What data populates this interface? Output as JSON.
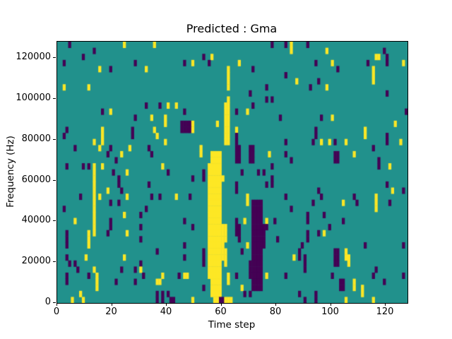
{
  "figure": {
    "background": "#ffffff"
  },
  "chart_data": {
    "type": "heatmap",
    "title": "Predicted : Gma",
    "xlabel": "Time step",
    "ylabel": "Frequency (Hz)",
    "x_range": [
      0,
      128
    ],
    "y_range": [
      0,
      128000
    ],
    "x_ticks": [
      0,
      20,
      40,
      60,
      80,
      100,
      120
    ],
    "y_ticks": [
      0,
      20000,
      40000,
      60000,
      80000,
      100000,
      120000
    ],
    "grid": "off",
    "legend": "none",
    "colormap": "viridis",
    "cell_classes": {
      ".": {
        "label": "mid/background",
        "color": "#21918c"
      },
      "p": {
        "label": "low",
        "color": "#440154"
      },
      "y": {
        "label": "high",
        "color": "#fde725"
      }
    },
    "n_cols": 128,
    "n_rows": 43,
    "rows_top_to_bottom": [
      {
        "p": [
          4,
          78,
          83,
          91
        ],
        "y": [
          24,
          35,
          85
        ]
      },
      {
        "p": [
          13,
          119
        ],
        "y": [
          85,
          98
        ]
      },
      {
        "p": [
          9,
          53,
          120
        ],
        "y": [
          56,
          116,
          117
        ]
      },
      {
        "p": [
          2,
          28,
          46,
          55,
          94,
          113,
          120
        ],
        "y": [
          49,
          66,
          100,
          126
        ]
      },
      {
        "p": [
          19,
          71,
          102
        ],
        "y": [
          15,
          32,
          62,
          115
        ]
      },
      {
        "p": [
          83
        ],
        "y": [
          62,
          115
        ]
      },
      {
        "p": [
          95
        ],
        "y": [
          62,
          87,
          115
        ]
      },
      {
        "p": [
          76,
          92
        ],
        "y": [
          2,
          11,
          62,
          98
        ]
      },
      {
        "p": [
          70,
          120
        ],
        "y": []
      },
      {
        "p": [
          76,
          78
        ],
        "y": [
          62
        ]
      },
      {
        "p": [
          32,
          37,
          71
        ],
        "y": [
          40,
          43,
          61,
          62
        ]
      },
      {
        "p": [
          16,
          46,
          65,
          127
        ],
        "y": [
          19,
          61,
          62,
          69
        ]
      },
      {
        "p": [
          28,
          81,
          96
        ],
        "y": [
          34,
          39,
          61,
          62,
          100
        ]
      },
      {
        "p": [
          45,
          46,
          47,
          48
        ],
        "y": [
          39,
          49,
          58,
          61,
          62,
          123
        ]
      },
      {
        "p": [
          3,
          27,
          45,
          46,
          47,
          48,
          94
        ],
        "y": [
          16,
          35,
          49,
          61,
          62,
          65,
          112
        ]
      },
      {
        "p": [
          2,
          27,
          65,
          94,
          120
        ],
        "y": [
          16,
          36,
          61,
          62,
          112
        ]
      },
      {
        "p": [
          65,
          83,
          93,
          101,
          120
        ],
        "y": [
          13,
          16,
          39,
          61,
          62,
          96,
          99,
          105,
          125
        ]
      },
      {
        "p": [
          6,
          19,
          33,
          65,
          66,
          70,
          71,
          115
        ],
        "y": [
          15,
          26,
          52
        ]
      },
      {
        "p": [
          18,
          34,
          65,
          66,
          70,
          71,
          83,
          101,
          102
        ],
        "y": [
          23,
          52,
          56,
          57,
          58,
          59,
          77,
          108
        ]
      },
      {
        "p": [
          21,
          65,
          66,
          70,
          71,
          85,
          101,
          102,
          117
        ],
        "y": [
          56,
          57,
          58,
          59
        ]
      },
      {
        "p": [
          3,
          9,
          11,
          78,
          117
        ],
        "y": [
          13,
          16,
          38,
          55,
          56,
          57,
          58,
          59,
          121
        ]
      },
      {
        "p": [
          20,
          40,
          53,
          67,
          73,
          75
        ],
        "y": [
          13,
          25,
          55,
          56,
          57,
          58,
          59
        ]
      },
      {
        "p": [
          22,
          49,
          53,
          78
        ],
        "y": [
          13,
          55,
          56,
          57,
          58,
          59,
          60
        ]
      },
      {
        "p": [
          22,
          33,
          65,
          76,
          78,
          120
        ],
        "y": [
          13,
          55,
          56,
          57,
          58,
          59
        ]
      },
      {
        "p": [
          23,
          65,
          95,
          126
        ],
        "y": [
          13,
          18,
          55,
          56,
          57,
          58,
          59,
          122
        ]
      },
      {
        "p": [
          8,
          34,
          37,
          48,
          83,
          96,
          108
        ],
        "y": [
          13,
          15,
          25,
          43,
          55,
          56,
          57,
          58,
          59,
          69,
          116
        ]
      },
      {
        "p": [
          19,
          22,
          71,
          72,
          73,
          74,
          93,
          109,
          121
        ],
        "y": [
          13,
          55,
          56,
          57,
          58,
          59,
          69,
          104,
          116
        ]
      },
      {
        "p": [
          2,
          32,
          71,
          72,
          73,
          74,
          85
        ],
        "y": [
          13,
          55,
          56,
          57,
          58,
          59,
          116
        ]
      },
      {
        "p": [
          30,
          71,
          72,
          73,
          74,
          91,
          97
        ],
        "y": [
          13,
          24,
          55,
          56,
          57,
          58,
          59
        ]
      },
      {
        "p": [
          19,
          46,
          65,
          71,
          72,
          73,
          74,
          79,
          91,
          104
        ],
        "y": [
          6,
          13,
          55,
          56,
          57,
          58,
          59,
          68,
          76
        ]
      },
      {
        "p": [
          19,
          30,
          49,
          65,
          66,
          71,
          72,
          73,
          74,
          75,
          76,
          99
        ],
        "y": [
          13,
          55,
          56,
          57,
          58,
          59,
          60,
          61
        ]
      },
      {
        "p": [
          3,
          18,
          65,
          66,
          71,
          72,
          73,
          74,
          75,
          91,
          95
        ],
        "y": [
          11,
          13,
          25,
          55,
          56,
          57,
          58,
          59,
          60,
          61,
          97
        ]
      },
      {
        "p": [
          3,
          30,
          66,
          71,
          72,
          73,
          74,
          75,
          80,
          91
        ],
        "y": [
          11,
          55,
          56,
          57,
          58,
          59,
          60,
          61
        ]
      },
      {
        "p": [
          3,
          46,
          71,
          72,
          73,
          74,
          75,
          89,
          112,
          126
        ],
        "y": [
          11,
          55,
          56,
          57,
          58,
          59,
          60,
          69
        ]
      },
      {
        "p": [
          36,
          53,
          67,
          71,
          72,
          73,
          74,
          88,
          101,
          102
        ],
        "y": [
          55,
          56,
          57,
          58,
          59,
          60,
          61,
          105
        ]
      },
      {
        "p": [
          3,
          46,
          53,
          71,
          72,
          73,
          74,
          88,
          90,
          101,
          102
        ],
        "y": [
          10,
          24,
          55,
          56,
          57,
          58,
          59,
          60,
          61,
          86,
          105,
          106
        ]
      },
      {
        "p": [
          4,
          6,
          30,
          53,
          70,
          71,
          72,
          73,
          74,
          90,
          101,
          102
        ],
        "y": [
          55,
          56,
          57,
          58,
          59,
          61,
          106
        ]
      },
      {
        "p": [
          7,
          23,
          28,
          70,
          71,
          72,
          73,
          74,
          90,
          116
        ],
        "y": [
          13,
          30,
          55,
          56,
          57,
          58,
          59
        ]
      },
      {
        "p": [
          3,
          11,
          31,
          44,
          65,
          70,
          71,
          72,
          73,
          74,
          83,
          100,
          115,
          126
        ],
        "y": [
          14,
          38,
          46,
          47,
          55,
          56,
          57,
          58,
          59,
          62,
          76
        ]
      },
      {
        "p": [
          3,
          21,
          28,
          71,
          72,
          73,
          74,
          103,
          104,
          119
        ],
        "y": [
          14,
          36,
          37,
          56,
          57,
          58,
          59,
          62,
          108
        ]
      },
      {
        "p": [
          53,
          71,
          72,
          73,
          74,
          103,
          104
        ],
        "y": [
          14,
          56,
          57,
          58,
          59,
          67,
          108,
          111
        ]
      },
      {
        "p": [
          36,
          38,
          40,
          68,
          70,
          88,
          94
        ],
        "y": [
          8,
          56,
          57,
          58,
          59,
          111
        ]
      },
      {
        "p": [
          36,
          38,
          41,
          42,
          59,
          60,
          90,
          94
        ],
        "y": [
          5,
          9,
          49,
          57,
          58,
          61,
          62,
          63,
          105,
          115
        ]
      }
    ]
  }
}
